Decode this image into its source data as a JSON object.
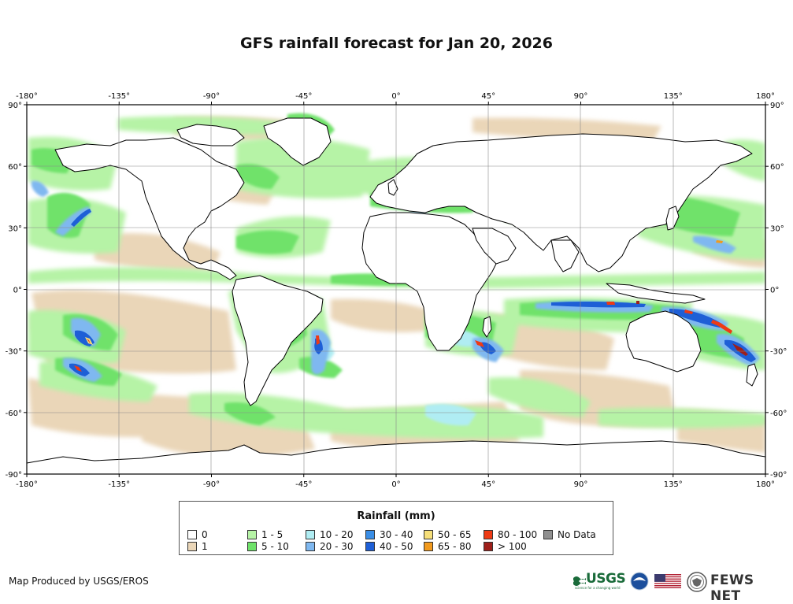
{
  "title": "GFS rainfall forecast for Jan 20, 2026",
  "axes": {
    "lon_labels": [
      "-180°",
      "-135°",
      "-90°",
      "-45°",
      "0°",
      "45°",
      "90°",
      "135°",
      "180°"
    ],
    "lat_labels": [
      "90°",
      "60°",
      "30°",
      "0°",
      "-30°",
      "-60°",
      "-90°"
    ],
    "lon_values": [
      -180,
      -135,
      -90,
      -45,
      0,
      45,
      90,
      135,
      180
    ],
    "lat_values": [
      90,
      60,
      30,
      0,
      -30,
      -60,
      -90
    ]
  },
  "legend": {
    "title": "Rainfall (mm)",
    "items": [
      {
        "label": "0",
        "color": "#ffffff"
      },
      {
        "label": "1",
        "color": "#ead6b8"
      },
      {
        "label": "1 - 5",
        "color": "#b6f3a6"
      },
      {
        "label": "5 - 10",
        "color": "#6fe26a"
      },
      {
        "label": "10 - 20",
        "color": "#b0edf3"
      },
      {
        "label": "20 - 30",
        "color": "#7fb8f0"
      },
      {
        "label": "30 - 40",
        "color": "#3a8ee6"
      },
      {
        "label": "40 - 50",
        "color": "#1e5fd6"
      },
      {
        "label": "50 - 65",
        "color": "#f6df7a"
      },
      {
        "label": "65 - 80",
        "color": "#f29a1d"
      },
      {
        "label": "80 - 100",
        "color": "#ee3a14"
      },
      {
        "label": "> 100",
        "color": "#9e1f1a"
      },
      {
        "label": "No Data",
        "color": "#909090"
      }
    ]
  },
  "credit": "Map Produced by USGS/EROS",
  "logos": {
    "usgs": "USGS",
    "usgs_tagline": "science for a changing world",
    "fews": "FEWS NET"
  },
  "colors": {
    "land_outline": "#000000",
    "grid": "#888888",
    "accent_usgs": "#1a6b3a"
  }
}
